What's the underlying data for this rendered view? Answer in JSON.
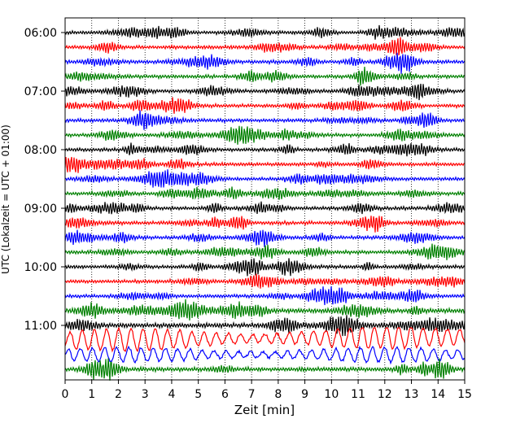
{
  "chart_data": {
    "type": "line",
    "xlabel": "Zeit  [min]",
    "ylabel": "UTC (Lokalzeit = UTC + 01:00)",
    "xlim": [
      0,
      15
    ],
    "x_ticks": [
      0,
      1,
      2,
      3,
      4,
      5,
      6,
      7,
      8,
      9,
      10,
      11,
      12,
      13,
      14,
      15
    ],
    "y_tick_labels": [
      "06:00",
      "07:00",
      "08:00",
      "09:00",
      "10:00",
      "11:00"
    ],
    "trace_start_times": [
      "06:00",
      "06:15",
      "06:30",
      "06:45",
      "07:00",
      "07:15",
      "07:30",
      "07:45",
      "08:00",
      "08:15",
      "08:30",
      "08:45",
      "09:00",
      "09:15",
      "09:30",
      "09:45",
      "10:00",
      "10:15",
      "10:30",
      "10:45",
      "11:00",
      "11:15",
      "11:30",
      "11:45"
    ],
    "trace_colors": [
      "#000000",
      "#ff0000",
      "#0000ff",
      "#008000"
    ],
    "trace_amplitudes": [
      1,
      1,
      1,
      1,
      1,
      1,
      1,
      1,
      1,
      1,
      1,
      1,
      1,
      1,
      1,
      1,
      1,
      1,
      1,
      1.3,
      1.4,
      4.2,
      2.8,
      1.2
    ],
    "grid": "vertical dotted"
  }
}
